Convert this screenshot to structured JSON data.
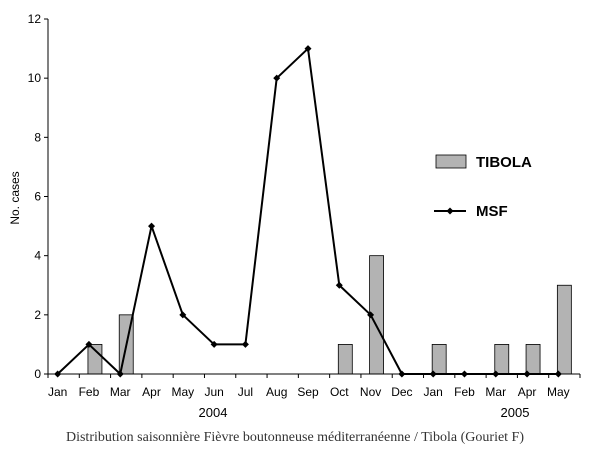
{
  "chart_data": {
    "type": "bar",
    "ylabel": "No. cases",
    "ylim": [
      0,
      12
    ],
    "yticks": [
      "0",
      "2",
      "4",
      "6",
      "8",
      "10",
      "12"
    ],
    "categories": [
      "Jan",
      "Feb",
      "Mar",
      "Apr",
      "May",
      "Jun",
      "Jul",
      "Aug",
      "Sep",
      "Oct",
      "Nov",
      "Dec",
      "Jan",
      "Feb",
      "Mar",
      "Apr",
      "May"
    ],
    "year_labels": [
      "2004",
      "2005"
    ],
    "series": [
      {
        "name": "TIBOLA",
        "type": "bar",
        "color": "#b3b3b3",
        "values": [
          0,
          1,
          2,
          0,
          0,
          0,
          0,
          0,
          0,
          1,
          4,
          0,
          1,
          0,
          1,
          1,
          3
        ]
      },
      {
        "name": "MSF",
        "type": "line",
        "color": "#000000",
        "values": [
          0,
          1,
          0,
          5,
          2,
          1,
          1,
          10,
          11,
          3,
          2,
          0,
          0,
          0,
          0,
          0,
          0
        ]
      }
    ],
    "legend_position": "right"
  },
  "caption": "Distribution saisonnière Fièvre boutonneuse méditerranéenne / Tibola (Gouriet F)"
}
